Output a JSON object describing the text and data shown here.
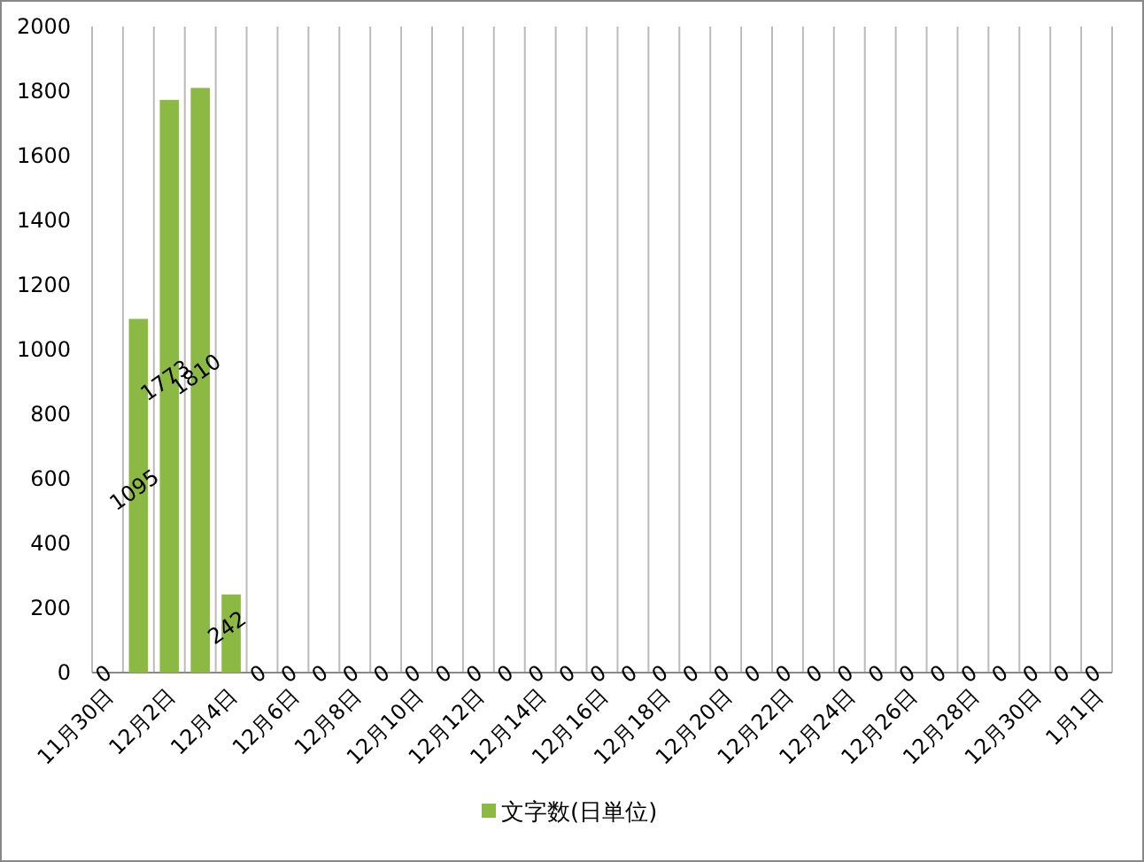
{
  "chart_data": {
    "type": "bar",
    "categories": [
      "11月30日",
      null,
      "12月2日",
      null,
      "12月4日",
      null,
      "12月6日",
      null,
      "12月8日",
      null,
      "12月10日",
      null,
      "12月12日",
      null,
      "12月14日",
      null,
      "12月16日",
      null,
      "12月18日",
      null,
      "12月20日",
      null,
      "12月22日",
      null,
      "12月24日",
      null,
      "12月26日",
      null,
      "12月28日",
      null,
      "12月30日",
      null,
      "1月1日"
    ],
    "series": [
      {
        "name": "文字数(日単位)",
        "color": "#8cb944",
        "values": [
          0,
          1095,
          1773,
          1810,
          242,
          0,
          0,
          0,
          0,
          0,
          0,
          0,
          0,
          0,
          0,
          0,
          0,
          0,
          0,
          0,
          0,
          0,
          0,
          0,
          0,
          0,
          0,
          0,
          0,
          0,
          0,
          0,
          0
        ]
      }
    ],
    "ylim": [
      0,
      2000
    ],
    "yticks": [
      0,
      200,
      400,
      600,
      800,
      1000,
      1200,
      1400,
      1600,
      1800,
      2000
    ],
    "grid": "x",
    "legend": "bottom",
    "data_labels": true
  }
}
